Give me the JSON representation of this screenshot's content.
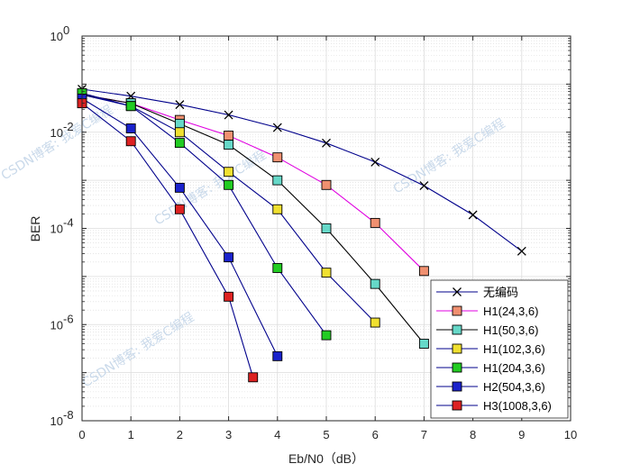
{
  "chart_data": {
    "type": "line",
    "title": "",
    "xlabel": "Eb/N0（dB）",
    "ylabel": "BER",
    "xlim": [
      0,
      10
    ],
    "ylim_log10": [
      -8,
      0
    ],
    "y_scale": "log",
    "grid": true,
    "minor_grid": true,
    "legend_position": "bottom-right",
    "x_ticks": [
      "0",
      "1",
      "2",
      "3",
      "4",
      "5",
      "6",
      "7",
      "8",
      "9",
      "10"
    ],
    "y_ticks": [
      {
        "base": "10",
        "exp": "0"
      },
      {
        "base": "10",
        "exp": "-2"
      },
      {
        "base": "10",
        "exp": "-4"
      },
      {
        "base": "10",
        "exp": "-6"
      },
      {
        "base": "10",
        "exp": "-8"
      }
    ],
    "series": [
      {
        "name": "无编码",
        "marker": "x",
        "line_color": "#00008b",
        "marker_face": "none",
        "x": [
          0,
          1,
          2,
          3,
          4,
          5,
          6,
          7,
          8,
          9
        ],
        "y": [
          0.0786,
          0.0563,
          0.0375,
          0.0229,
          0.0125,
          0.00595,
          0.00239,
          0.000773,
          0.000191,
          3.36e-05
        ]
      },
      {
        "name": "H1(24,3,6)",
        "marker": "square",
        "line_color": "#e000e0",
        "marker_face": "#f09070",
        "x": [
          0,
          1,
          2,
          3,
          4,
          5,
          6,
          7
        ],
        "y": [
          0.06,
          0.04,
          0.018,
          0.0085,
          0.003,
          0.0008,
          0.00013,
          1.3e-05
        ]
      },
      {
        "name": "H1(50,3,6)",
        "marker": "square",
        "line_color": "#000000",
        "marker_face": "#66d8c8",
        "x": [
          0,
          1,
          2,
          3,
          4,
          5,
          6,
          7
        ],
        "y": [
          0.06,
          0.04,
          0.015,
          0.0055,
          0.001,
          0.0001,
          7e-06,
          4e-07
        ]
      },
      {
        "name": "H1(102,3,6)",
        "marker": "square",
        "line_color": "#00008b",
        "marker_face": "#f0e030",
        "x": [
          0,
          1,
          2,
          3,
          4,
          5,
          6
        ],
        "y": [
          0.06,
          0.035,
          0.01,
          0.0015,
          0.00025,
          1.2e-05,
          1.1e-06
        ]
      },
      {
        "name": "H1(204,3,6)",
        "marker": "square",
        "line_color": "#00008b",
        "marker_face": "#22cc22",
        "x": [
          0,
          1,
          2,
          3,
          4,
          5
        ],
        "y": [
          0.065,
          0.035,
          0.006,
          0.0008,
          1.5e-05,
          6e-07
        ]
      },
      {
        "name": "H2(504,3,6)",
        "marker": "square",
        "line_color": "#00008b",
        "marker_face": "#1a22cc",
        "x": [
          0,
          1,
          2,
          3,
          4
        ],
        "y": [
          0.05,
          0.012,
          0.0007,
          2.5e-05,
          2.2e-07
        ]
      },
      {
        "name": "H3(1008,3,6)",
        "marker": "square",
        "line_color": "#00008b",
        "marker_face": "#dd2222",
        "x": [
          0,
          1,
          2,
          3,
          3.5
        ],
        "y": [
          0.04,
          0.0065,
          0.00025,
          3.8e-06,
          8e-08
        ]
      }
    ]
  },
  "watermarks": [
    "CSDN博客: 我爱C编程",
    "CSDN博客: 我爱C编程",
    "CSDN博客: 我爱C编程",
    "CSDN博客: 我爱C编程"
  ]
}
